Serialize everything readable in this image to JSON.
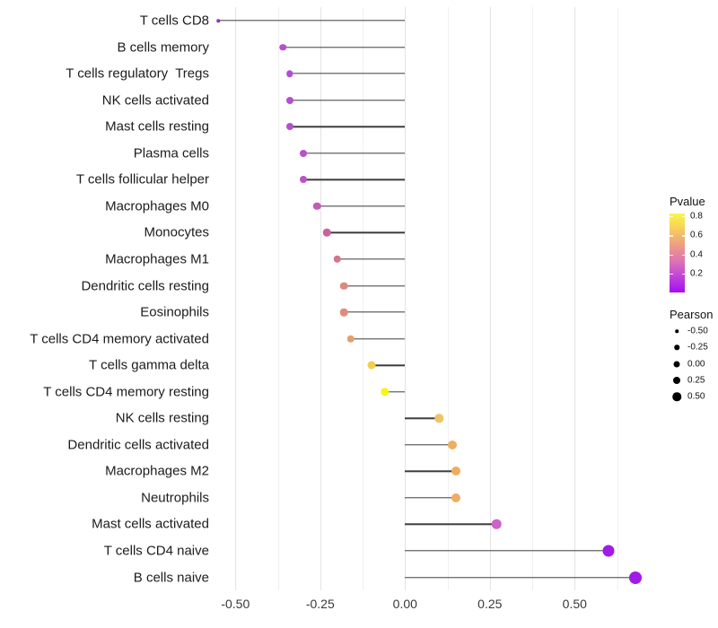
{
  "chart_data": {
    "type": "scatter",
    "variant": "lollipop",
    "title": "",
    "xlabel": "",
    "ylabel": "",
    "xlim": [
      -0.61,
      0.74
    ],
    "grid": "vertical-only",
    "background": "#ffffff",
    "stem_color": "#3c3c3c",
    "x_ticks": [
      {
        "value": -0.5,
        "label": "-0.50"
      },
      {
        "value": -0.25,
        "label": "-0.25"
      },
      {
        "value": 0.0,
        "label": "0.00"
      },
      {
        "value": 0.25,
        "label": "0.25"
      },
      {
        "value": 0.5,
        "label": "0.50"
      }
    ],
    "x_minor_gridlines": [
      -0.375,
      -0.125,
      0.125,
      0.375,
      0.625
    ],
    "categories": [
      "T cells CD8",
      "B cells memory",
      "T cells regulatory  Tregs",
      "NK cells activated",
      "Mast cells resting",
      "Plasma cells",
      "T cells follicular helper",
      "Macrophages M0",
      "Monocytes",
      "Macrophages M1",
      "Dendritic cells resting",
      "Eosinophils",
      "T cells CD4 memory activated",
      "T cells gamma delta",
      "T cells CD4 memory resting",
      "NK cells resting",
      "Dendritic cells activated",
      "Macrophages M2",
      "Neutrophils",
      "Mast cells activated",
      "T cells CD4 naive",
      "B cells naive"
    ],
    "points": [
      {
        "label": "T cells CD8",
        "pearson": -0.55,
        "pvalue": 0.01,
        "color": "#8d33d4",
        "diameter": 3.5
      },
      {
        "label": "B cells memory",
        "pearson": -0.36,
        "pvalue": 0.15,
        "color": "#b44fd0",
        "diameter": 7.5
      },
      {
        "label": "T cells regulatory  Tregs",
        "pearson": -0.34,
        "pvalue": 0.15,
        "color": "#b24ed1",
        "diameter": 7.5
      },
      {
        "label": "NK cells activated",
        "pearson": -0.34,
        "pvalue": 0.16,
        "color": "#b250d0",
        "diameter": 8
      },
      {
        "label": "Mast cells resting",
        "pearson": -0.34,
        "pvalue": 0.16,
        "color": "#b250d0",
        "diameter": 8
      },
      {
        "label": "Plasma cells",
        "pearson": -0.3,
        "pvalue": 0.19,
        "color": "#b951c8",
        "diameter": 8
      },
      {
        "label": "T cells follicular helper",
        "pearson": -0.3,
        "pvalue": 0.2,
        "color": "#bb53c5",
        "diameter": 8
      },
      {
        "label": "Macrophages M0",
        "pearson": -0.26,
        "pvalue": 0.25,
        "color": "#c45bb3",
        "diameter": 8.5
      },
      {
        "label": "Monocytes",
        "pearson": -0.23,
        "pvalue": 0.3,
        "color": "#cb62a0",
        "diameter": 8.5
      },
      {
        "label": "Macrophages M1",
        "pearson": -0.2,
        "pvalue": 0.33,
        "color": "#d5758d",
        "diameter": 8.5
      },
      {
        "label": "Dendritic cells resting",
        "pearson": -0.18,
        "pvalue": 0.38,
        "color": "#dd8a7d",
        "diameter": 8.5
      },
      {
        "label": "Eosinophils",
        "pearson": -0.18,
        "pvalue": 0.38,
        "color": "#de8c7b",
        "diameter": 8.5
      },
      {
        "label": "T cells CD4 memory activated",
        "pearson": -0.16,
        "pvalue": 0.43,
        "color": "#e79e6a",
        "diameter": 8.5
      },
      {
        "label": "T cells gamma delta",
        "pearson": -0.1,
        "pvalue": 0.62,
        "color": "#f2d04a",
        "diameter": 9
      },
      {
        "label": "T cells CD4 memory resting",
        "pearson": -0.06,
        "pvalue": 0.82,
        "color": "#f6f615",
        "diameter": 9.5
      },
      {
        "label": "NK cells resting",
        "pearson": 0.1,
        "pvalue": 0.6,
        "color": "#eec466",
        "diameter": 9.5
      },
      {
        "label": "Dendritic cells activated",
        "pearson": 0.14,
        "pvalue": 0.47,
        "color": "#eeae60",
        "diameter": 10
      },
      {
        "label": "Macrophages M2",
        "pearson": 0.15,
        "pvalue": 0.46,
        "color": "#eead61",
        "diameter": 10
      },
      {
        "label": "Neutrophils",
        "pearson": 0.15,
        "pvalue": 0.46,
        "color": "#eead61",
        "diameter": 10
      },
      {
        "label": "Mast cells activated",
        "pearson": 0.27,
        "pvalue": 0.22,
        "color": "#ce62c8",
        "diameter": 10.5
      },
      {
        "label": "T cells CD4 naive",
        "pearson": 0.6,
        "pvalue": 0.02,
        "color": "#a01ae8",
        "diameter": 13
      },
      {
        "label": "B cells naive",
        "pearson": 0.68,
        "pvalue": 0.02,
        "color": "#a01ae8",
        "diameter": 14
      }
    ],
    "legend": {
      "pvalue": {
        "title": "Pvalue",
        "range": [
          0,
          0.83
        ],
        "ticks": [
          {
            "value": 0.8,
            "label": "0.8"
          },
          {
            "value": 0.6,
            "label": "0.6"
          },
          {
            "value": 0.4,
            "label": "0.4"
          },
          {
            "value": 0.2,
            "label": "0.2"
          }
        ],
        "gradient": [
          {
            "pos": 0,
            "color": "#a30ef2"
          },
          {
            "pos": 10,
            "color": "#b12ae4"
          },
          {
            "pos": 25,
            "color": "#c94fd0"
          },
          {
            "pos": 40,
            "color": "#dd74b4"
          },
          {
            "pos": 55,
            "color": "#ea9390"
          },
          {
            "pos": 70,
            "color": "#f2b46d"
          },
          {
            "pos": 85,
            "color": "#f7d957"
          },
          {
            "pos": 100,
            "color": "#fbf445"
          }
        ]
      },
      "pearson": {
        "title": "Pearson",
        "entries": [
          {
            "label": "-0.50",
            "diameter": 3.5
          },
          {
            "label": "-0.25",
            "diameter": 5.5
          },
          {
            "label": "0.00",
            "diameter": 7
          },
          {
            "label": "0.25",
            "diameter": 8
          },
          {
            "label": "0.50",
            "diameter": 9.5
          }
        ]
      }
    }
  }
}
